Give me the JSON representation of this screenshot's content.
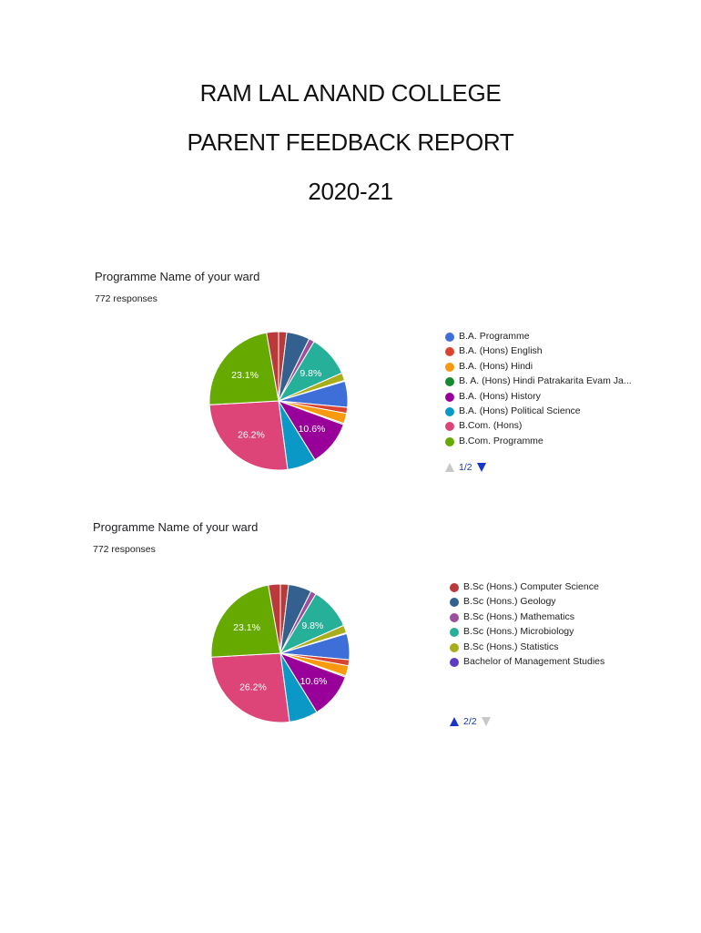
{
  "document": {
    "title_lines": [
      "RAM LAL ANAND COLLEGE",
      "PARENT FEEDBACK REPORT",
      "2020-21"
    ]
  },
  "chart_data": [
    {
      "type": "pie",
      "title": "Programme Name of your ward",
      "subtitle": "772 responses",
      "slices": [
        {
          "label": "B.Sc (Hons.) Computer Science",
          "value": 1.9,
          "color": "#b83a3a"
        },
        {
          "label": "B.Sc (Hons.) Geology",
          "value": 5.4,
          "color": "#33608f"
        },
        {
          "label": "B.Sc (Hons.) Mathematics",
          "value": 1.3,
          "color": "#9c4f9c"
        },
        {
          "label": "B.Sc (Hons.) Microbiology",
          "value": 9.8,
          "color": "#26b09a",
          "data_label": "9.8%"
        },
        {
          "label": "B.Sc (Hons.) Statistics",
          "value": 1.8,
          "color": "#a8ad1c"
        },
        {
          "label": "Bachelor of Management Studies",
          "value": 0.2,
          "color": "#5c3dc4"
        },
        {
          "label": "B.A. Programme",
          "value": 6.1,
          "color": "#3e6fd8"
        },
        {
          "label": "B.A. (Hons) English",
          "value": 1.4,
          "color": "#d94430"
        },
        {
          "label": "B.A. (Hons) Hindi",
          "value": 2.4,
          "color": "#f79a0f"
        },
        {
          "label": "B. A. (Hons) Hindi Patrakarita Evam Jansanchar",
          "value": 0.3,
          "color": "#178a2f"
        },
        {
          "label": "B.A. (Hons) History",
          "value": 10.6,
          "color": "#990099",
          "data_label": "10.6%"
        },
        {
          "label": "B.A. (Hons) Political Science",
          "value": 6.7,
          "color": "#0a99c6"
        },
        {
          "label": "B.Com. (Hons)",
          "value": 26.2,
          "color": "#dd4477",
          "data_label": "26.2%"
        },
        {
          "label": "B.Com. Programme",
          "value": 23.1,
          "color": "#66aa00",
          "data_label": "23.1%"
        },
        {
          "label": "",
          "value": 2.8,
          "color": "#b83a3a"
        }
      ],
      "legend": {
        "placement": "right",
        "items": [
          {
            "label": "B.A. Programme",
            "color": "#3e6fd8"
          },
          {
            "label": "B.A. (Hons) English",
            "color": "#d94430"
          },
          {
            "label": "B.A. (Hons) Hindi",
            "color": "#f79a0f"
          },
          {
            "label": "B. A. (Hons) Hindi Patrakarita Evam Ja...",
            "color": "#178a2f"
          },
          {
            "label": "B.A. (Hons) History",
            "color": "#990099"
          },
          {
            "label": "B.A. (Hons) Political Science",
            "color": "#0a99c6"
          },
          {
            "label": "B.Com. (Hons)",
            "color": "#dd4477"
          },
          {
            "label": "B.Com. Programme",
            "color": "#66aa00"
          }
        ]
      },
      "pager": {
        "text": "1/2",
        "up": "disabled",
        "down": "enabled"
      }
    },
    {
      "type": "pie",
      "title": "Programme Name of your ward",
      "subtitle": "772 responses",
      "slices": [
        {
          "label": "B.Sc (Hons.) Computer Science",
          "value": 1.9,
          "color": "#b83a3a"
        },
        {
          "label": "B.Sc (Hons.) Geology",
          "value": 5.4,
          "color": "#33608f"
        },
        {
          "label": "B.Sc (Hons.) Mathematics",
          "value": 1.3,
          "color": "#9c4f9c"
        },
        {
          "label": "B.Sc (Hons.) Microbiology",
          "value": 9.8,
          "color": "#26b09a",
          "data_label": "9.8%"
        },
        {
          "label": "B.Sc (Hons.) Statistics",
          "value": 1.8,
          "color": "#a8ad1c"
        },
        {
          "label": "Bachelor of Management Studies",
          "value": 0.2,
          "color": "#5c3dc4"
        },
        {
          "label": "B.A. Programme",
          "value": 6.1,
          "color": "#3e6fd8"
        },
        {
          "label": "B.A. (Hons) English",
          "value": 1.4,
          "color": "#d94430"
        },
        {
          "label": "B.A. (Hons) Hindi",
          "value": 2.4,
          "color": "#f79a0f"
        },
        {
          "label": "B. A. (Hons) Hindi Patrakarita Evam Jansanchar",
          "value": 0.3,
          "color": "#178a2f"
        },
        {
          "label": "B.A. (Hons) History",
          "value": 10.6,
          "color": "#990099",
          "data_label": "10.6%"
        },
        {
          "label": "B.A. (Hons) Political Science",
          "value": 6.7,
          "color": "#0a99c6"
        },
        {
          "label": "B.Com. (Hons)",
          "value": 26.2,
          "color": "#dd4477",
          "data_label": "26.2%"
        },
        {
          "label": "B.Com. Programme",
          "value": 23.1,
          "color": "#66aa00",
          "data_label": "23.1%"
        },
        {
          "label": "",
          "value": 2.8,
          "color": "#b83a3a"
        }
      ],
      "legend": {
        "placement": "right",
        "items": [
          {
            "label": "B.Sc (Hons.) Computer Science",
            "color": "#b83a3a"
          },
          {
            "label": "B.Sc (Hons.) Geology",
            "color": "#33608f"
          },
          {
            "label": "B.Sc (Hons.) Mathematics",
            "color": "#9c4f9c"
          },
          {
            "label": "B.Sc (Hons.) Microbiology",
            "color": "#26b09a"
          },
          {
            "label": "B.Sc (Hons.) Statistics",
            "color": "#a8ad1c"
          },
          {
            "label": "Bachelor of Management Studies",
            "color": "#5c3dc4"
          }
        ]
      },
      "pager": {
        "text": "2/2",
        "up": "enabled",
        "down": "disabled"
      }
    }
  ]
}
